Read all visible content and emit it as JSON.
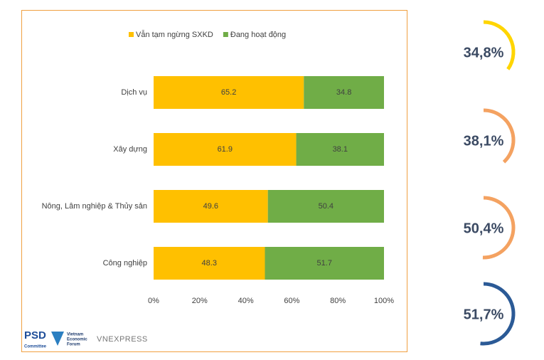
{
  "chart_data": [
    {
      "type": "stacked-bar-horizontal",
      "categories": [
        "Dịch vụ",
        "Xây dựng",
        "Nông, Lâm nghiệp & Thủy sản",
        "Công nghiệp"
      ],
      "series": [
        {
          "name": "Vẫn tạm ngừng SXKD",
          "color": "#ffc000",
          "values": [
            65.2,
            61.9,
            49.6,
            48.3
          ]
        },
        {
          "name": "Đang hoạt động",
          "color": "#70ad47",
          "values": [
            34.8,
            38.1,
            50.4,
            51.7
          ]
        }
      ],
      "xlim": [
        0,
        100
      ],
      "xticks": [
        {
          "value": 0,
          "label": "0%"
        },
        {
          "value": 20,
          "label": "20%"
        },
        {
          "value": 40,
          "label": "40%"
        },
        {
          "value": 60,
          "label": "60%"
        },
        {
          "value": 80,
          "label": "80%"
        },
        {
          "value": 100,
          "label": "100%"
        }
      ],
      "grid": false,
      "legend": "top"
    },
    {
      "type": "gauge",
      "values": [
        34.8,
        38.1,
        50.4,
        51.7
      ],
      "value_labels": [
        "34,8%",
        "38,1%",
        "50,4%",
        "51,7%"
      ],
      "colors": [
        "#ffd500",
        "#f4a261",
        "#f4a261",
        "#2b5a96"
      ]
    }
  ],
  "logos": [
    "PSD",
    "Committee",
    "Vietnam",
    "Economic",
    "Forum",
    "VNEXPRESS"
  ]
}
